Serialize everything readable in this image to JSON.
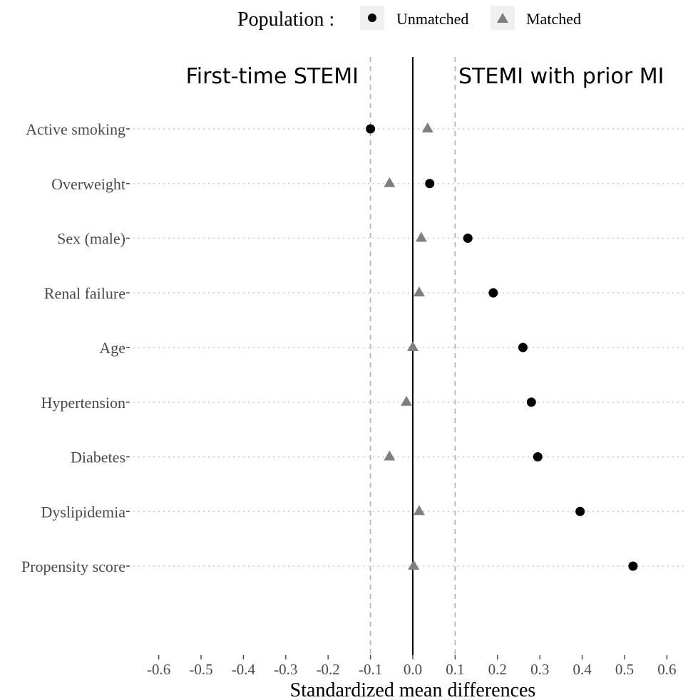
{
  "legend": {
    "title": "Population :",
    "placement": "top",
    "items": [
      {
        "name": "Unmatched",
        "marker": "circle",
        "color": "#000000"
      },
      {
        "name": "Matched",
        "marker": "triangle",
        "color": "#7f7f7f"
      }
    ]
  },
  "chart_data": {
    "type": "scatter",
    "xlabel": "Standardized mean differences",
    "ylabel": "",
    "xlim": [
      -0.6,
      0.6
    ],
    "x_ticks": [
      "-0.6",
      "-0.5",
      "-0.4",
      "-0.3",
      "-0.2",
      "-0.1",
      "0.0",
      "0.1",
      "0.2",
      "0.3",
      "0.4",
      "0.5",
      "0.6"
    ],
    "x_tick_values": [
      -0.6,
      -0.5,
      -0.4,
      -0.3,
      -0.2,
      -0.1,
      0.0,
      0.1,
      0.2,
      0.3,
      0.4,
      0.5,
      0.6
    ],
    "reference_lines": [
      {
        "x": -0.1,
        "style": "dashed"
      },
      {
        "x": 0.0,
        "style": "solid"
      },
      {
        "x": 0.1,
        "style": "dashed"
      }
    ],
    "annotations": [
      {
        "text": "First-time STEMI",
        "side": "left"
      },
      {
        "text": "STEMI with prior MI",
        "side": "right"
      }
    ],
    "categories": [
      "Active smoking",
      "Overweight",
      "Sex (male)",
      "Renal failure",
      "Age",
      "Hypertension",
      "Diabetes",
      "Dyslipidemia",
      "Propensity score"
    ],
    "series": [
      {
        "name": "Unmatched",
        "values": [
          -0.1,
          0.04,
          0.13,
          0.19,
          0.26,
          0.28,
          0.295,
          0.395,
          0.52
        ]
      },
      {
        "name": "Matched",
        "values": [
          0.035,
          -0.055,
          0.02,
          0.015,
          0.0,
          -0.015,
          -0.055,
          0.015,
          0.002
        ]
      }
    ],
    "grid": "horizontal-dotted"
  }
}
